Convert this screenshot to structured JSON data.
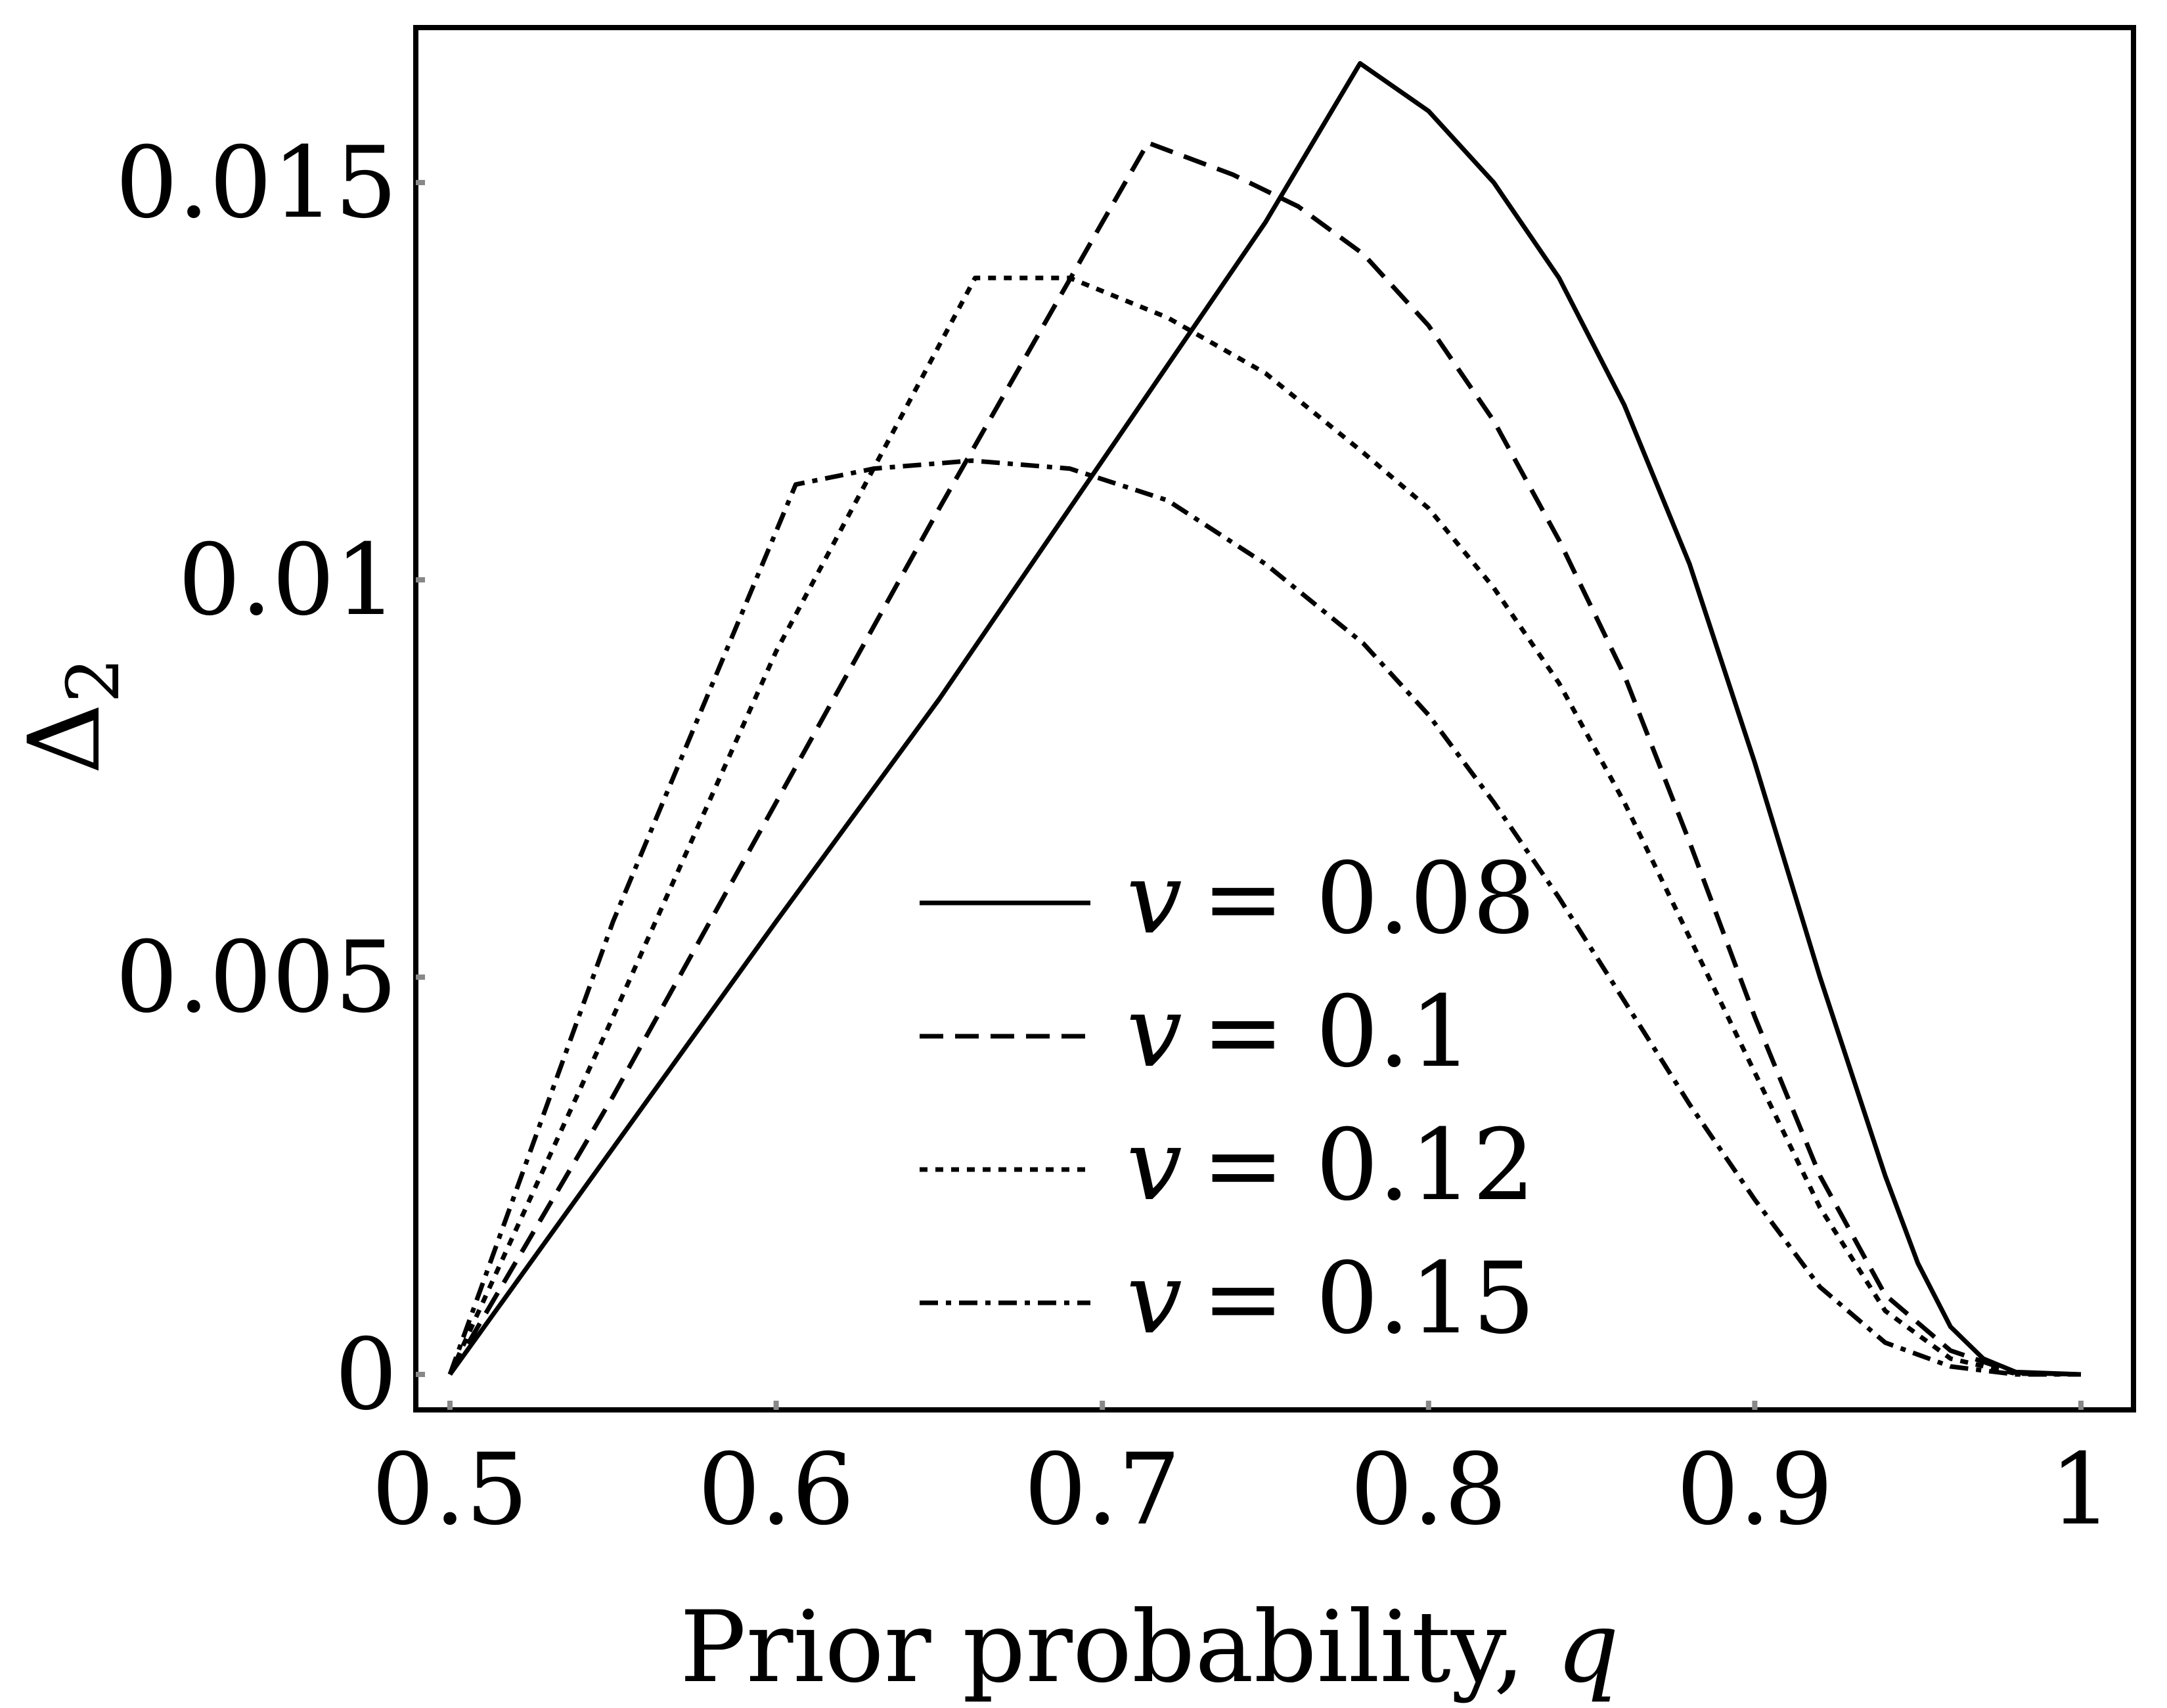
{
  "chart_data": {
    "type": "line",
    "title": "",
    "xlabel": "Prior probability, ",
    "xlabel_var": "q",
    "ylabel_symbol": "Δ",
    "ylabel_sub": "2",
    "xlim": [
      0.5,
      1.0
    ],
    "ylim": [
      -0.0004,
      0.0168
    ],
    "xticks": [
      0.5,
      0.6,
      0.7,
      0.8,
      0.9,
      1.0
    ],
    "xtick_labels": [
      "0.5",
      "0.6",
      "0.7",
      "0.8",
      "0.9",
      "1"
    ],
    "yticks": [
      0,
      0.005,
      0.01,
      0.015
    ],
    "ytick_labels": [
      "0",
      "0.005",
      "0.01",
      "0.015"
    ],
    "grid": false,
    "legend_position": "lower-center",
    "series": [
      {
        "name": "v = 0.08",
        "legend_var": "v",
        "legend_value": "= 0.08",
        "dash": "solid",
        "x": [
          0.5,
          0.55,
          0.6,
          0.65,
          0.7,
          0.75,
          0.779,
          0.8,
          0.82,
          0.84,
          0.86,
          0.88,
          0.9,
          0.92,
          0.94,
          0.95,
          0.96,
          0.97,
          0.98,
          1.0
        ],
        "y": [
          0,
          0.00285,
          0.0057,
          0.0085,
          0.0115,
          0.0145,
          0.0165,
          0.0159,
          0.015,
          0.0138,
          0.0122,
          0.0102,
          0.0077,
          0.005,
          0.0025,
          0.0014,
          0.0006,
          0.0002,
          3e-05,
          0
        ]
      },
      {
        "name": "v = 0.1",
        "legend_var": "v",
        "legend_value": "= 0.1",
        "dash": "dashed",
        "x": [
          0.5,
          0.55,
          0.6,
          0.65,
          0.7,
          0.714,
          0.74,
          0.76,
          0.78,
          0.8,
          0.82,
          0.84,
          0.86,
          0.88,
          0.9,
          0.92,
          0.94,
          0.96,
          0.98,
          1.0
        ],
        "y": [
          0,
          0.0035,
          0.0072,
          0.0109,
          0.0145,
          0.0155,
          0.0151,
          0.0147,
          0.0141,
          0.0132,
          0.012,
          0.0105,
          0.0088,
          0.0067,
          0.0045,
          0.0025,
          0.001,
          0.0003,
          2e-05,
          0
        ]
      },
      {
        "name": "v = 0.12",
        "legend_var": "v",
        "legend_value": "= 0.12",
        "dash": "dotted",
        "x": [
          0.5,
          0.55,
          0.6,
          0.661,
          0.69,
          0.72,
          0.75,
          0.78,
          0.8,
          0.82,
          0.84,
          0.86,
          0.88,
          0.9,
          0.92,
          0.94,
          0.96,
          0.98,
          1.0
        ],
        "y": [
          0,
          0.0045,
          0.0091,
          0.0138,
          0.0138,
          0.0133,
          0.0126,
          0.0116,
          0.0109,
          0.0099,
          0.0087,
          0.0072,
          0.0055,
          0.0038,
          0.0021,
          0.0008,
          0.0002,
          1e-05,
          0
        ]
      },
      {
        "name": "v = 0.15",
        "legend_var": "v",
        "legend_value": "= 0.15",
        "dash": "dashdot",
        "x": [
          0.5,
          0.55,
          0.606,
          0.63,
          0.66,
          0.69,
          0.72,
          0.75,
          0.78,
          0.8,
          0.82,
          0.84,
          0.86,
          0.88,
          0.9,
          0.92,
          0.94,
          0.96,
          0.98,
          1.0
        ],
        "y": [
          0,
          0.0057,
          0.0112,
          0.0114,
          0.0115,
          0.0114,
          0.011,
          0.0102,
          0.0092,
          0.0083,
          0.0072,
          0.006,
          0.0047,
          0.0034,
          0.0022,
          0.0011,
          0.0004,
          0.0001,
          0,
          0
        ]
      }
    ]
  }
}
